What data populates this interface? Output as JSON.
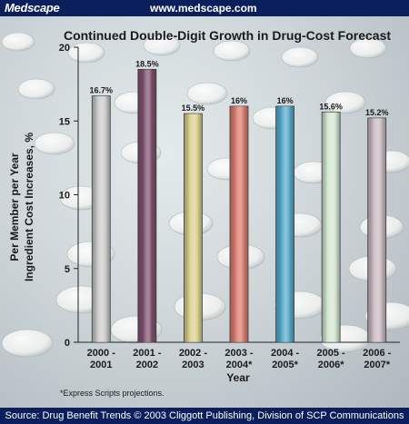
{
  "header": {
    "brand": "Medscape",
    "url": "www.medscape.com"
  },
  "footer": {
    "source": "Source: Drug Benefit Trends © 2003 Cliggott Publishing, Division of SCP Communications"
  },
  "chart_data": {
    "type": "bar",
    "title": "Continued Double-Digit Growth in Drug-Cost Forecast",
    "xlabel": "Year",
    "ylabel_lines": [
      "Per Member per Year",
      "Ingredient Cost Increases, %"
    ],
    "ylim": [
      0,
      20
    ],
    "yticks": [
      0,
      5,
      10,
      15,
      20
    ],
    "grid": false,
    "categories": [
      [
        "2000 -",
        "2001"
      ],
      [
        "2001 -",
        "2002"
      ],
      [
        "2002 -",
        "2003"
      ],
      [
        "2003 -",
        "2004*"
      ],
      [
        "2004 -",
        "2005*"
      ],
      [
        "2005 -",
        "2006*"
      ],
      [
        "2006 -",
        "2007*"
      ]
    ],
    "values": [
      16.7,
      18.5,
      15.5,
      16,
      16,
      15.6,
      15.2
    ],
    "value_labels": [
      "16.7%",
      "18.5%",
      "15.5%",
      "16%",
      "16%",
      "15.6%",
      "15.2%"
    ],
    "bar_colors": [
      "#c9c9c9",
      "#7a4a68",
      "#d8cf8a",
      "#d9796a",
      "#4fa6c9",
      "#d2e6d0",
      "#c8b8bf"
    ],
    "footnote": "*Express Scripts projections."
  }
}
